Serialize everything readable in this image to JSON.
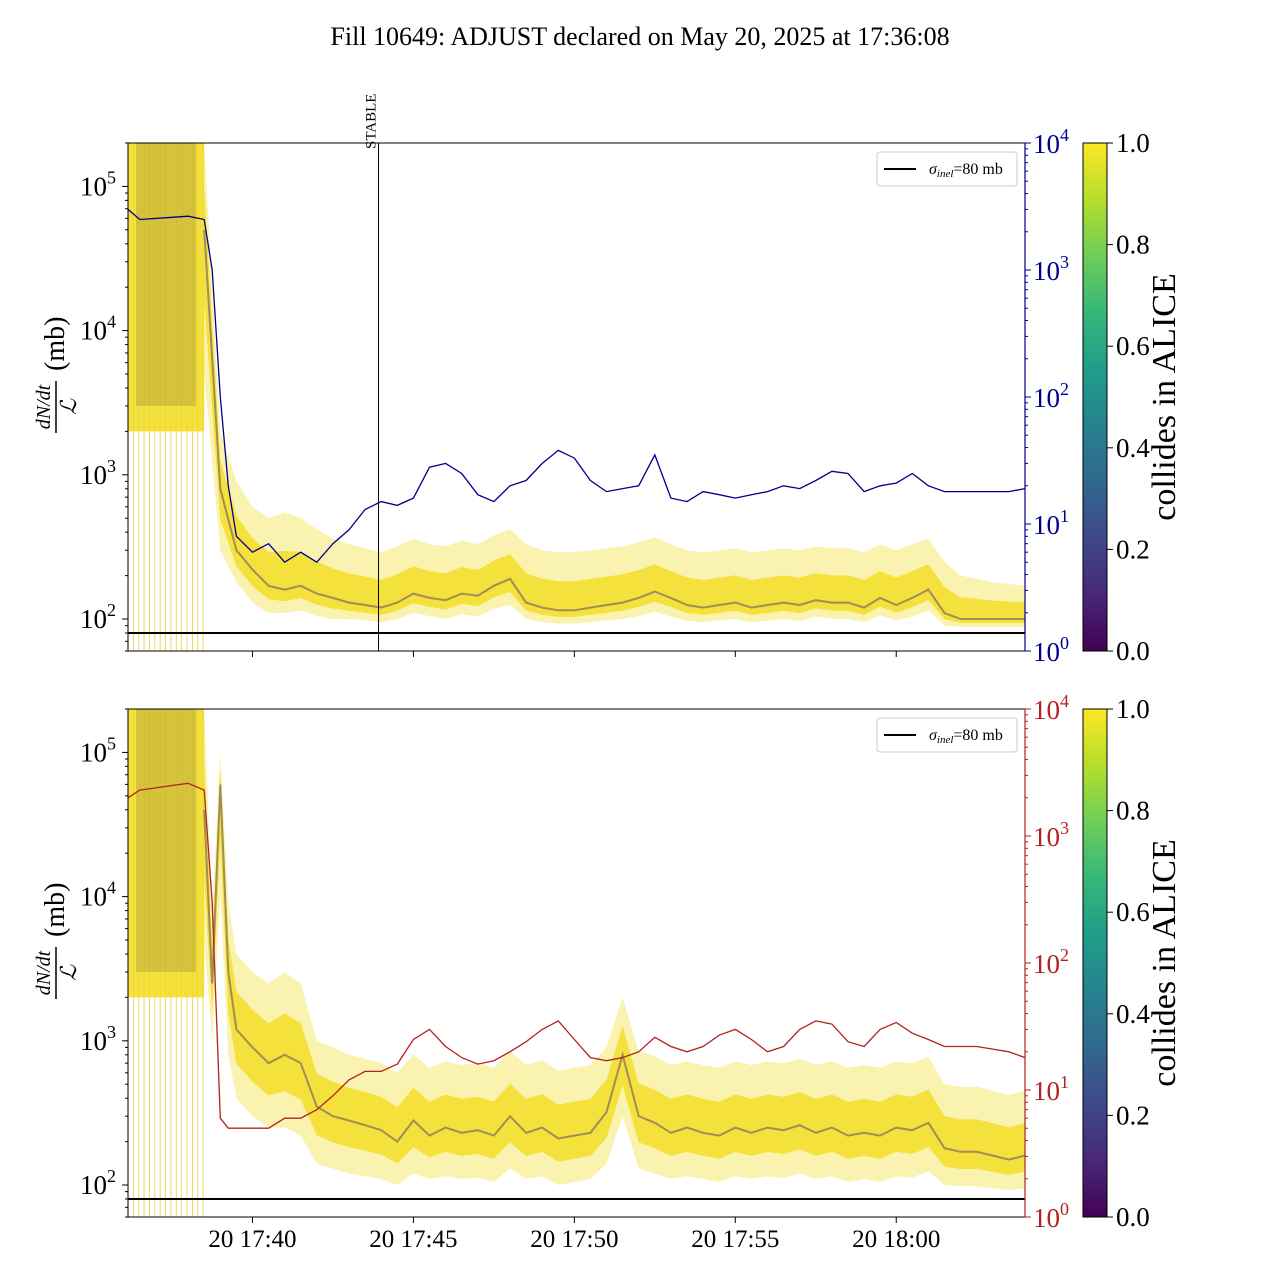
{
  "title": "Fill 10649: ADJUST declared on May 20, 2025 at 17:36:08",
  "colors": {
    "top_secondary": "#00008b",
    "bottom_secondary": "#b22222",
    "band_fill": "#f2dc1e",
    "band_dark": "#5b4a6e",
    "reference": "#000000",
    "stable_line": "#000000"
  },
  "chart_data": [
    {
      "type": "line",
      "panel": "top",
      "ylabel_numerator": "dN/dt",
      "ylabel_denominator": "ℒ",
      "ylabel_unit": "(mb)",
      "y_scale": "log",
      "ylim": [
        60,
        200000
      ],
      "yticks": [
        {
          "value": 100,
          "base": "10",
          "exp": "2"
        },
        {
          "value": 1000,
          "base": "10",
          "exp": "3"
        },
        {
          "value": 10000,
          "base": "10",
          "exp": "4"
        },
        {
          "value": 100000,
          "base": "10",
          "exp": "5"
        }
      ],
      "x_range": [
        "17:36:08",
        "18:04:00"
      ],
      "x_ticks": [],
      "y2_scale": "log",
      "y2lim": [
        1,
        10000
      ],
      "y2ticks": [
        {
          "value": 1,
          "base": "10",
          "exp": "0"
        },
        {
          "value": 10,
          "base": "10",
          "exp": "1"
        },
        {
          "value": 100,
          "base": "10",
          "exp": "2"
        },
        {
          "value": 1000,
          "base": "10",
          "exp": "3"
        },
        {
          "value": 10000,
          "base": "10",
          "exp": "4"
        }
      ],
      "annotation": {
        "label": "STABLE",
        "x": "17:43:55"
      },
      "legend": {
        "entry_symbol": "σ",
        "entry_subscript": "inel",
        "entry_text": "=80 mb",
        "placement": "top-right"
      },
      "reference_line": {
        "value": 80
      },
      "band": {
        "x": [
          "17:38:30",
          "17:39:00",
          "17:39:30",
          "17:40:00",
          "17:40:30",
          "17:41:00",
          "17:41:30",
          "17:42:00",
          "17:42:30",
          "17:43:00",
          "17:43:30",
          "17:44:00",
          "17:44:30",
          "17:45:00",
          "17:45:30",
          "17:46:00",
          "17:46:30",
          "17:47:00",
          "17:47:30",
          "17:48:00",
          "17:48:30",
          "17:49:00",
          "17:49:30",
          "17:50:00",
          "17:50:30",
          "17:51:00",
          "17:51:30",
          "17:52:00",
          "17:52:30",
          "17:53:00",
          "17:53:30",
          "17:54:00",
          "17:54:30",
          "17:55:00",
          "17:55:30",
          "17:56:00",
          "17:56:30",
          "17:57:00",
          "17:57:30",
          "17:58:00",
          "17:58:30",
          "17:59:00",
          "17:59:30",
          "18:00:00",
          "18:00:30",
          "18:01:00",
          "18:01:30",
          "18:02:00",
          "18:02:30",
          "18:03:00",
          "18:03:30",
          "18:04:00"
        ],
        "mid": [
          50000,
          800,
          300,
          220,
          170,
          160,
          170,
          150,
          140,
          130,
          125,
          120,
          130,
          150,
          140,
          135,
          150,
          145,
          170,
          190,
          130,
          120,
          115,
          115,
          120,
          125,
          130,
          140,
          155,
          140,
          125,
          120,
          125,
          130,
          120,
          125,
          130,
          125,
          135,
          130,
          130,
          120,
          140,
          125,
          140,
          160,
          110,
          100,
          100,
          100,
          100,
          100
        ],
        "low": [
          5000,
          300,
          180,
          130,
          110,
          110,
          115,
          105,
          100,
          100,
          98,
          95,
          100,
          110,
          105,
          100,
          108,
          104,
          118,
          125,
          100,
          95,
          93,
          93,
          95,
          98,
          100,
          105,
          112,
          104,
          97,
          95,
          98,
          100,
          95,
          97,
          100,
          97,
          104,
          100,
          100,
          95,
          106,
          98,
          104,
          115,
          90,
          88,
          88,
          88,
          88,
          88
        ],
        "high": [
          200000,
          2000,
          900,
          600,
          500,
          550,
          500,
          420,
          360,
          330,
          310,
          290,
          320,
          360,
          330,
          320,
          350,
          330,
          380,
          420,
          330,
          300,
          290,
          290,
          300,
          310,
          320,
          340,
          370,
          330,
          300,
          290,
          300,
          310,
          290,
          300,
          310,
          300,
          320,
          310,
          310,
          290,
          330,
          300,
          330,
          360,
          250,
          200,
          190,
          180,
          175,
          170
        ]
      },
      "secondary_series": {
        "x": [
          "17:36:08",
          "17:36:30",
          "17:37:30",
          "17:38:00",
          "17:38:30",
          "17:38:45",
          "17:39:00",
          "17:39:15",
          "17:39:30",
          "17:40:00",
          "17:40:30",
          "17:41:00",
          "17:41:30",
          "17:42:00",
          "17:42:30",
          "17:43:00",
          "17:43:30",
          "17:44:00",
          "17:44:30",
          "17:45:00",
          "17:45:30",
          "17:46:00",
          "17:46:30",
          "17:47:00",
          "17:47:30",
          "17:48:00",
          "17:48:30",
          "17:49:00",
          "17:49:30",
          "17:50:00",
          "17:50:30",
          "17:51:00",
          "17:51:30",
          "17:52:00",
          "17:52:30",
          "17:53:00",
          "17:53:30",
          "17:54:00",
          "17:54:30",
          "17:55:00",
          "17:55:30",
          "17:56:00",
          "17:56:30",
          "17:57:00",
          "17:57:30",
          "17:58:00",
          "17:58:30",
          "17:59:00",
          "17:59:30",
          "18:00:00",
          "18:00:30",
          "18:01:00",
          "18:01:30",
          "18:02:00",
          "18:02:30",
          "18:03:00",
          "18:03:30",
          "18:04:00"
        ],
        "values": [
          3000,
          2500,
          2600,
          2650,
          2500,
          1000,
          100,
          20,
          8,
          6,
          7,
          5,
          6,
          5,
          7,
          9,
          13,
          15,
          14,
          16,
          28,
          30,
          25,
          17,
          15,
          20,
          22,
          30,
          38,
          33,
          22,
          18,
          19,
          20,
          35,
          16,
          15,
          18,
          17,
          16,
          17,
          18,
          20,
          19,
          22,
          26,
          25,
          18,
          20,
          21,
          25,
          20,
          18,
          18,
          18,
          18,
          18,
          19
        ]
      }
    },
    {
      "type": "line",
      "panel": "bottom",
      "ylabel_numerator": "dN/dt",
      "ylabel_denominator": "ℒ",
      "ylabel_unit": "(mb)",
      "y_scale": "log",
      "ylim": [
        60,
        200000
      ],
      "yticks": [
        {
          "value": 100,
          "base": "10",
          "exp": "2"
        },
        {
          "value": 1000,
          "base": "10",
          "exp": "3"
        },
        {
          "value": 10000,
          "base": "10",
          "exp": "4"
        },
        {
          "value": 100000,
          "base": "10",
          "exp": "5"
        }
      ],
      "x_range": [
        "17:36:08",
        "18:04:00"
      ],
      "x_ticks": [
        {
          "value": "17:40:00",
          "label": "20 17:40"
        },
        {
          "value": "17:45:00",
          "label": "20 17:45"
        },
        {
          "value": "17:50:00",
          "label": "20 17:50"
        },
        {
          "value": "17:55:00",
          "label": "20 17:55"
        },
        {
          "value": "18:00:00",
          "label": "20 18:00"
        }
      ],
      "y2_scale": "log",
      "y2lim": [
        1,
        10000
      ],
      "y2ticks": [
        {
          "value": 1,
          "base": "10",
          "exp": "0"
        },
        {
          "value": 10,
          "base": "10",
          "exp": "1"
        },
        {
          "value": 100,
          "base": "10",
          "exp": "2"
        },
        {
          "value": 1000,
          "base": "10",
          "exp": "3"
        },
        {
          "value": 10000,
          "base": "10",
          "exp": "4"
        }
      ],
      "legend": {
        "entry_symbol": "σ",
        "entry_subscript": "inel",
        "entry_text": "=80 mb",
        "placement": "top-right"
      },
      "reference_line": {
        "value": 80
      },
      "band": {
        "x": [
          "17:38:30",
          "17:38:45",
          "17:39:00",
          "17:39:15",
          "17:39:30",
          "17:40:00",
          "17:40:30",
          "17:41:00",
          "17:41:30",
          "17:42:00",
          "17:42:30",
          "17:43:00",
          "17:43:30",
          "17:44:00",
          "17:44:30",
          "17:45:00",
          "17:45:30",
          "17:46:00",
          "17:46:30",
          "17:47:00",
          "17:47:30",
          "17:48:00",
          "17:48:30",
          "17:49:00",
          "17:49:30",
          "17:50:00",
          "17:50:30",
          "17:51:00",
          "17:51:30",
          "17:52:00",
          "17:52:30",
          "17:53:00",
          "17:53:30",
          "17:54:00",
          "17:54:30",
          "17:55:00",
          "17:55:30",
          "17:56:00",
          "17:56:30",
          "17:57:00",
          "17:57:30",
          "17:58:00",
          "17:58:30",
          "17:59:00",
          "17:59:30",
          "18:00:00",
          "18:00:30",
          "18:01:00",
          "18:01:30",
          "18:02:00",
          "18:02:30",
          "18:03:00",
          "18:03:30",
          "18:04:00"
        ],
        "mid": [
          40000,
          2500,
          60000,
          3000,
          1200,
          900,
          700,
          800,
          700,
          350,
          300,
          280,
          260,
          240,
          200,
          280,
          220,
          250,
          230,
          240,
          220,
          300,
          230,
          250,
          210,
          220,
          230,
          320,
          800,
          300,
          270,
          230,
          250,
          230,
          220,
          250,
          230,
          250,
          240,
          260,
          230,
          250,
          220,
          230,
          220,
          250,
          240,
          270,
          180,
          170,
          170,
          160,
          150,
          160
        ],
        "low": [
          5000,
          1000,
          10000,
          800,
          400,
          300,
          250,
          250,
          220,
          140,
          130,
          120,
          115,
          110,
          100,
          120,
          110,
          115,
          110,
          112,
          105,
          130,
          110,
          115,
          100,
          105,
          110,
          140,
          300,
          130,
          120,
          110,
          115,
          110,
          105,
          115,
          110,
          115,
          112,
          120,
          110,
          115,
          105,
          110,
          105,
          115,
          112,
          125,
          100,
          98,
          98,
          95,
          92,
          95
        ],
        "high": [
          200000,
          8000,
          100000,
          9000,
          4000,
          3000,
          2500,
          3000,
          2500,
          1000,
          900,
          800,
          750,
          700,
          600,
          800,
          650,
          720,
          680,
          700,
          650,
          850,
          680,
          730,
          620,
          650,
          680,
          900,
          2000,
          850,
          780,
          680,
          720,
          680,
          650,
          720,
          680,
          720,
          700,
          750,
          680,
          720,
          650,
          680,
          650,
          720,
          700,
          780,
          500,
          480,
          480,
          450,
          420,
          450
        ]
      },
      "secondary_series": {
        "x": [
          "17:36:08",
          "17:36:30",
          "17:37:30",
          "17:38:00",
          "17:38:30",
          "17:38:45",
          "17:39:00",
          "17:39:15",
          "17:39:30",
          "17:40:00",
          "17:40:30",
          "17:41:00",
          "17:41:30",
          "17:42:00",
          "17:42:30",
          "17:43:00",
          "17:43:30",
          "17:44:00",
          "17:44:30",
          "17:45:00",
          "17:45:30",
          "17:46:00",
          "17:46:30",
          "17:47:00",
          "17:47:30",
          "17:48:00",
          "17:48:30",
          "17:49:00",
          "17:49:30",
          "17:50:00",
          "17:50:30",
          "17:51:00",
          "17:51:30",
          "17:52:00",
          "17:52:30",
          "17:53:00",
          "17:53:30",
          "17:54:00",
          "17:54:30",
          "17:55:00",
          "17:55:30",
          "17:56:00",
          "17:56:30",
          "17:57:00",
          "17:57:30",
          "17:58:00",
          "17:58:30",
          "17:59:00",
          "17:59:30",
          "18:00:00",
          "18:00:30",
          "18:01:00",
          "18:01:30",
          "18:02:00",
          "18:02:30",
          "18:03:00",
          "18:03:30",
          "18:04:00"
        ],
        "values": [
          2000,
          2300,
          2500,
          2600,
          2300,
          300,
          6,
          5,
          5,
          5,
          5,
          6,
          6,
          7,
          9,
          12,
          14,
          14,
          16,
          25,
          30,
          22,
          18,
          16,
          17,
          20,
          24,
          30,
          35,
          25,
          18,
          17,
          18,
          20,
          26,
          22,
          20,
          22,
          27,
          30,
          25,
          20,
          22,
          30,
          35,
          33,
          24,
          22,
          30,
          34,
          28,
          25,
          22,
          22,
          22,
          21,
          20,
          18
        ]
      }
    }
  ],
  "colorbars": [
    {
      "panel": "top",
      "label": "collides in ALICE",
      "ticks": [
        "0.0",
        "0.2",
        "0.4",
        "0.6",
        "0.8",
        "1.0"
      ],
      "range": [
        0,
        1
      ],
      "colormap": [
        "#440154",
        "#482878",
        "#3e4989",
        "#31688e",
        "#26828e",
        "#1f9e89",
        "#35b779",
        "#6ece58",
        "#b5de2b",
        "#fde725"
      ]
    },
    {
      "panel": "bottom",
      "label": "collides in ALICE",
      "ticks": [
        "0.0",
        "0.2",
        "0.4",
        "0.6",
        "0.8",
        "1.0"
      ],
      "range": [
        0,
        1
      ],
      "colormap": [
        "#440154",
        "#482878",
        "#3e4989",
        "#31688e",
        "#26828e",
        "#1f9e89",
        "#35b779",
        "#6ece58",
        "#b5de2b",
        "#fde725"
      ]
    }
  ]
}
